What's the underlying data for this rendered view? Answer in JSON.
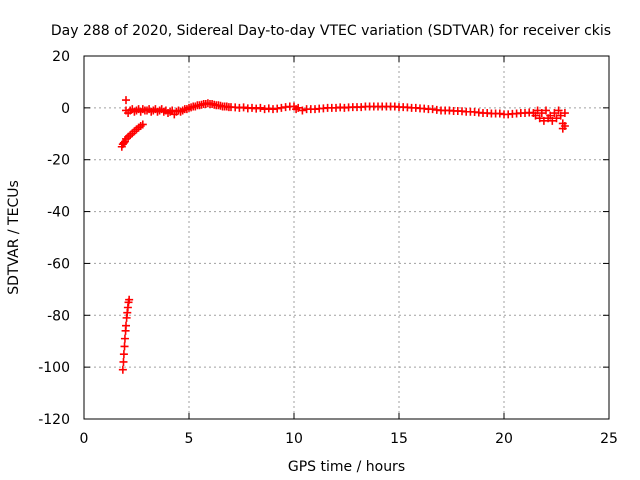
{
  "chart_data": {
    "type": "scatter",
    "title": "Day 288 of 2020, Sidereal Day-to-day VTEC variation (SDTVAR) for receiver ckis",
    "xlabel": "GPS time / hours",
    "ylabel": "SDTVAR / TECUs",
    "xlim": [
      0,
      25
    ],
    "ylim": [
      -120,
      20
    ],
    "xticks": [
      0,
      5,
      10,
      15,
      20,
      25
    ],
    "yticks": [
      -120,
      -100,
      -80,
      -60,
      -40,
      -20,
      0,
      20
    ],
    "x_tick_labels": [
      "0",
      "5",
      "10",
      "15",
      "20",
      "25"
    ],
    "y_tick_labels": [
      "-120",
      "-100",
      "-80",
      "-60",
      "-40",
      "-20",
      "0",
      "20"
    ],
    "grid": true,
    "legend": "none",
    "marker": "+",
    "color": "#ff0000",
    "series": [
      {
        "points": [
          [
            1.85,
            -101
          ],
          [
            1.88,
            -98
          ],
          [
            1.9,
            -95
          ],
          [
            1.93,
            -92
          ],
          [
            1.95,
            -89
          ],
          [
            1.98,
            -86
          ],
          [
            2.0,
            -84
          ],
          [
            2.03,
            -81
          ],
          [
            2.06,
            -79
          ],
          [
            2.09,
            -77
          ],
          [
            2.12,
            -75
          ],
          [
            2.15,
            -74
          ],
          [
            1.8,
            -15
          ],
          [
            1.85,
            -14
          ],
          [
            1.9,
            -13.5
          ],
          [
            1.95,
            -13
          ],
          [
            2.0,
            -12
          ],
          [
            2.1,
            -11.2
          ],
          [
            2.2,
            -10.5
          ],
          [
            2.3,
            -9.8
          ],
          [
            2.4,
            -9.0
          ],
          [
            2.5,
            -8.3
          ],
          [
            2.6,
            -7.6
          ],
          [
            2.7,
            -7.0
          ],
          [
            2.8,
            -6.4
          ],
          [
            2.0,
            3
          ],
          [
            2.0,
            -1
          ],
          [
            2.1,
            -2
          ],
          [
            2.2,
            -1
          ],
          [
            2.3,
            -0.5
          ],
          [
            2.4,
            -1.5
          ],
          [
            2.5,
            -1
          ],
          [
            2.6,
            -0.5
          ],
          [
            2.7,
            -1.5
          ],
          [
            2.8,
            -0.5
          ],
          [
            2.9,
            -1
          ],
          [
            3.0,
            -1
          ],
          [
            3.1,
            -0.5
          ],
          [
            3.2,
            -1.5
          ],
          [
            3.3,
            -1
          ],
          [
            3.4,
            -0.5
          ],
          [
            3.5,
            -1.5
          ],
          [
            3.6,
            -1
          ],
          [
            3.7,
            -0.5
          ],
          [
            3.8,
            -1.5
          ],
          [
            3.9,
            -1
          ],
          [
            4.0,
            -2
          ],
          [
            4.1,
            -1.5
          ],
          [
            4.2,
            -1
          ],
          [
            4.3,
            -2.5
          ],
          [
            4.4,
            -1.5
          ],
          [
            4.5,
            -1
          ],
          [
            4.6,
            -1.5
          ],
          [
            4.7,
            -1
          ],
          [
            4.8,
            -0.5
          ],
          [
            4.9,
            -0.5
          ],
          [
            5.0,
            0
          ],
          [
            5.1,
            0.2
          ],
          [
            5.2,
            0.5
          ],
          [
            5.3,
            0.5
          ],
          [
            5.4,
            1.0
          ],
          [
            5.5,
            1.0
          ],
          [
            5.6,
            1.2
          ],
          [
            5.7,
            1.5
          ],
          [
            5.8,
            1.5
          ],
          [
            5.9,
            1.8
          ],
          [
            6.0,
            1.5
          ],
          [
            6.1,
            1.5
          ],
          [
            6.2,
            1.2
          ],
          [
            6.3,
            1.0
          ],
          [
            6.4,
            1.0
          ],
          [
            6.5,
            0.8
          ],
          [
            6.6,
            0.5
          ],
          [
            6.7,
            0.5
          ],
          [
            6.8,
            0.5
          ],
          [
            6.9,
            0.3
          ],
          [
            7.0,
            0.3
          ],
          [
            7.2,
            0.2
          ],
          [
            7.4,
            0
          ],
          [
            7.6,
            0.2
          ],
          [
            7.8,
            -0.2
          ],
          [
            8.0,
            0
          ],
          [
            8.2,
            -0.3
          ],
          [
            8.4,
            0
          ],
          [
            8.6,
            -0.5
          ],
          [
            8.8,
            -0.2
          ],
          [
            9.0,
            -0.5
          ],
          [
            9.2,
            -0.3
          ],
          [
            9.4,
            0
          ],
          [
            9.6,
            0.3
          ],
          [
            9.8,
            0.5
          ],
          [
            10.0,
            0.5
          ],
          [
            10.1,
            -0.5
          ],
          [
            10.2,
            0
          ],
          [
            10.4,
            -1
          ],
          [
            10.6,
            -0.5
          ],
          [
            10.8,
            -0.5
          ],
          [
            11.0,
            -0.5
          ],
          [
            11.2,
            -0.3
          ],
          [
            11.4,
            -0.2
          ],
          [
            11.6,
            0
          ],
          [
            11.8,
            0
          ],
          [
            12.0,
            0
          ],
          [
            12.2,
            0.2
          ],
          [
            12.4,
            0
          ],
          [
            12.6,
            0.2
          ],
          [
            12.8,
            0.3
          ],
          [
            13.0,
            0.3
          ],
          [
            13.2,
            0.3
          ],
          [
            13.4,
            0.5
          ],
          [
            13.6,
            0.5
          ],
          [
            13.8,
            0.5
          ],
          [
            14.0,
            0.5
          ],
          [
            14.2,
            0.5
          ],
          [
            14.4,
            0.5
          ],
          [
            14.6,
            0.5
          ],
          [
            14.8,
            0.5
          ],
          [
            15.0,
            0.3
          ],
          [
            15.2,
            0.3
          ],
          [
            15.4,
            0.2
          ],
          [
            15.6,
            0
          ],
          [
            15.8,
            0
          ],
          [
            16.0,
            -0.2
          ],
          [
            16.2,
            -0.3
          ],
          [
            16.4,
            -0.5
          ],
          [
            16.6,
            -0.5
          ],
          [
            16.8,
            -0.8
          ],
          [
            17.0,
            -1
          ],
          [
            17.2,
            -1
          ],
          [
            17.4,
            -1
          ],
          [
            17.6,
            -1.2
          ],
          [
            17.8,
            -1.2
          ],
          [
            18.0,
            -1.3
          ],
          [
            18.2,
            -1.5
          ],
          [
            18.4,
            -1.5
          ],
          [
            18.6,
            -1.6
          ],
          [
            18.8,
            -1.8
          ],
          [
            19.0,
            -2
          ],
          [
            19.2,
            -2
          ],
          [
            19.4,
            -2.2
          ],
          [
            19.6,
            -2.2
          ],
          [
            19.8,
            -2.2
          ],
          [
            20.0,
            -2.5
          ],
          [
            20.2,
            -2.5
          ],
          [
            20.4,
            -2.3
          ],
          [
            20.6,
            -2.2
          ],
          [
            20.8,
            -2.0
          ],
          [
            21.0,
            -2.0
          ],
          [
            21.2,
            -1.8
          ],
          [
            21.4,
            -2
          ],
          [
            21.5,
            -3
          ],
          [
            21.6,
            -1
          ],
          [
            21.7,
            -4
          ],
          [
            21.8,
            -2
          ],
          [
            21.9,
            -5
          ],
          [
            22.0,
            -1
          ],
          [
            22.1,
            -4
          ],
          [
            22.2,
            -3
          ],
          [
            22.3,
            -5
          ],
          [
            22.4,
            -2
          ],
          [
            22.5,
            -4
          ],
          [
            22.6,
            -1
          ],
          [
            22.7,
            -3
          ],
          [
            22.8,
            -6
          ],
          [
            22.9,
            -2
          ],
          [
            22.8,
            -8
          ],
          [
            22.9,
            -7
          ]
        ]
      }
    ]
  }
}
